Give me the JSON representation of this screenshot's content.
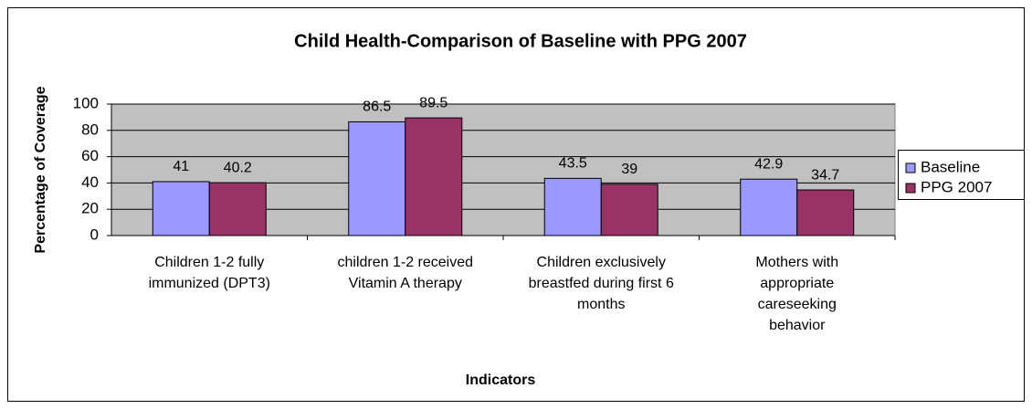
{
  "chart_data": {
    "type": "bar",
    "title": "Child Health-Comparison of Baseline with PPG 2007",
    "x_label": "Indicators",
    "y_label": "Percentage of Coverage",
    "categories": [
      "Children 1-2 fully immunized (DPT3)",
      "children 1-2 received Vitamin A therapy",
      "Children exclusively breastfed during first 6 months",
      "Mothers with appropriate careseeking behavior"
    ],
    "series": [
      {
        "name": "Baseline",
        "color": "#9999ff",
        "values": [
          41,
          86.5,
          43.5,
          42.9
        ]
      },
      {
        "name": "PPG 2007",
        "color": "#993366",
        "values": [
          40.2,
          89.5,
          39,
          34.7
        ]
      }
    ],
    "ylim": [
      0,
      100
    ],
    "yticks": [
      0,
      20,
      40,
      60,
      80,
      100
    ],
    "grid": true,
    "legend": "right"
  }
}
